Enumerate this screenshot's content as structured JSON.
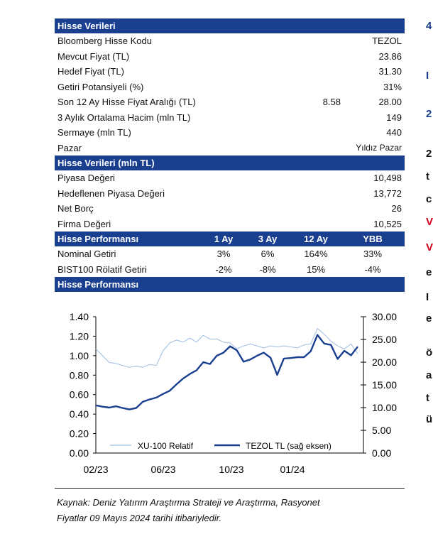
{
  "section1": {
    "title": "Hisse Verileri",
    "rows": [
      {
        "label": "Bloomberg Hisse Kodu",
        "value": "TEZOL"
      },
      {
        "label": "Mevcut Fiyat (TL)",
        "value": "23.86"
      },
      {
        "label": "Hedef Fiyat (TL)",
        "value": "31.30"
      },
      {
        "label": "Getiri Potansiyeli (%)",
        "value": "31%"
      },
      {
        "label": "Son 12 Ay Hisse Fiyat Aralığı (TL)",
        "value_low": "8.58",
        "value": "28.00"
      },
      {
        "label": "3 Aylık Ortalama Hacim (mln TL)",
        "value": "149"
      },
      {
        "label": "Sermaye (mln TL)",
        "value": "440"
      },
      {
        "label": "Pazar",
        "value": "Yıldız Pazar"
      }
    ]
  },
  "section2": {
    "title": "Hisse Verileri (mln TL)",
    "rows": [
      {
        "label": "Piyasa Değeri",
        "value": "10,498"
      },
      {
        "label": "Hedeflenen Piyasa Değeri",
        "value": "13,772"
      },
      {
        "label": "Net Borç",
        "value": "26"
      },
      {
        "label": "Firma Değeri",
        "value": "10,525"
      }
    ]
  },
  "section3": {
    "title": "Hisse Performansı",
    "columns": [
      "1 Ay",
      "3 Ay",
      "12 Ay",
      "YBB"
    ],
    "rows": [
      {
        "label": "Nominal Getiri",
        "values": [
          "3%",
          "6%",
          "164%",
          "33%"
        ]
      },
      {
        "label": "BIST100 Rölatif Getiri",
        "values": [
          "-2%",
          "-8%",
          "15%",
          "-4%"
        ]
      }
    ]
  },
  "section4": {
    "title": "Hisse Performansı"
  },
  "chart_data": {
    "type": "line",
    "x_ticks": [
      "02/23",
      "06/23",
      "10/23",
      "01/24"
    ],
    "left_axis": {
      "ticks": [
        "1.40",
        "1.20",
        "1.00",
        "0.80",
        "0.60",
        "0.40",
        "0.20",
        "0.00"
      ],
      "ylim": [
        0,
        1.4
      ]
    },
    "right_axis": {
      "ticks": [
        "30.00",
        "25.00",
        "20.00",
        "15.00",
        "10.00",
        "5.00",
        "0.00"
      ],
      "ylim": [
        0,
        30
      ]
    },
    "series": [
      {
        "name": "XU-100 Relatif",
        "axis": "left",
        "color": "#9dbde0",
        "values": [
          1.07,
          1.0,
          0.93,
          0.92,
          0.9,
          0.88,
          0.89,
          0.88,
          0.91,
          0.9,
          1.05,
          1.13,
          1.16,
          1.14,
          1.18,
          1.14,
          1.21,
          1.17,
          1.17,
          1.14,
          1.13,
          1.07,
          1.1,
          1.12,
          1.1,
          1.08,
          1.1,
          1.09,
          1.1,
          1.09,
          1.08,
          1.11,
          1.12,
          1.28,
          1.22,
          1.15,
          1.1,
          1.07,
          1.12,
          1.02
        ]
      },
      {
        "name": "TEZOL TL (sağ eksen)",
        "axis": "right",
        "color": "#1a3f8f",
        "values": [
          10.5,
          10.2,
          10.0,
          10.3,
          9.9,
          9.6,
          9.9,
          11.3,
          11.8,
          12.2,
          13.0,
          13.7,
          15.1,
          16.4,
          17.4,
          18.2,
          20.0,
          19.6,
          21.4,
          22.1,
          23.5,
          22.6,
          20.1,
          20.6,
          21.4,
          22.1,
          21.0,
          17.2,
          20.8,
          20.9,
          21.1,
          21.1,
          22.4,
          26.0,
          24.1,
          23.8,
          20.7,
          22.5,
          21.5,
          23.4
        ]
      }
    ],
    "legend": "bottom-center"
  },
  "source": {
    "line1": "Kaynak: Deniz Yatırım Araştırma Strateji ve Araştırma, Rasyonet",
    "line2": "Fiyatlar 09 Mayıs 2024 tarihi itibariyledir."
  },
  "cut_text": [
    "4",
    "I",
    "2",
    "2",
    "t",
    "c",
    "V",
    "V",
    "e",
    "I",
    "e",
    "ö",
    "a",
    "t",
    "ü"
  ]
}
